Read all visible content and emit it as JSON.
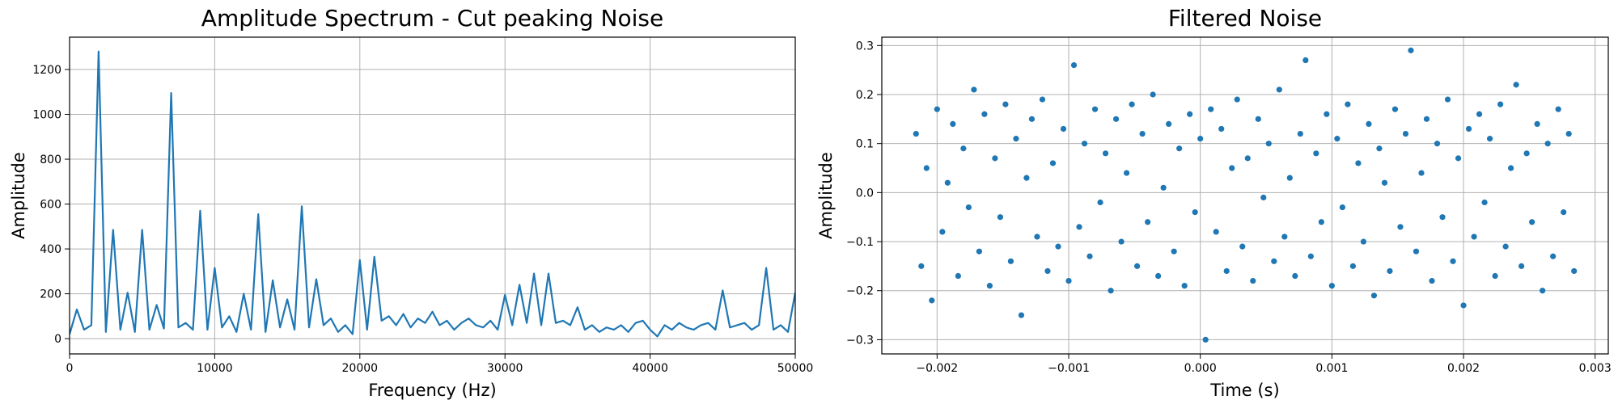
{
  "chart_data": [
    {
      "type": "line",
      "title": "Amplitude Spectrum - Cut peaking Noise",
      "xlabel": "Frequency (Hz)",
      "ylabel": "Amplitude",
      "color": "#1f77b4",
      "grid": true,
      "x": [
        0,
        500,
        1000,
        1500,
        2000,
        2500,
        3000,
        3500,
        4000,
        4500,
        5000,
        5500,
        6000,
        6500,
        7000,
        7500,
        8000,
        8500,
        9000,
        9500,
        10000,
        10500,
        11000,
        11500,
        12000,
        12500,
        13000,
        13500,
        14000,
        14500,
        15000,
        15500,
        16000,
        16500,
        17000,
        17500,
        18000,
        18500,
        19000,
        19500,
        20000,
        20500,
        21000,
        21500,
        22000,
        22500,
        23000,
        23500,
        24000,
        24500,
        25000,
        25500,
        26000,
        26500,
        27000,
        27500,
        28000,
        28500,
        29000,
        29500,
        30000,
        30500,
        31000,
        31500,
        32000,
        32500,
        33000,
        33500,
        34000,
        34500,
        35000,
        35500,
        36000,
        36500,
        37000,
        37500,
        38000,
        38500,
        39000,
        39500,
        40000,
        40500,
        41000,
        41500,
        42000,
        42500,
        43000,
        43500,
        44000,
        44500,
        45000,
        45500,
        46000,
        46500,
        47000,
        47500,
        48000,
        48500,
        49000,
        49500,
        50000
      ],
      "values": [
        20,
        130,
        40,
        60,
        1280,
        30,
        485,
        40,
        205,
        30,
        485,
        40,
        150,
        45,
        1095,
        50,
        70,
        40,
        570,
        40,
        315,
        50,
        100,
        30,
        200,
        40,
        555,
        30,
        260,
        50,
        175,
        40,
        590,
        50,
        265,
        60,
        90,
        30,
        60,
        20,
        350,
        40,
        365,
        80,
        100,
        60,
        110,
        50,
        90,
        70,
        120,
        60,
        80,
        40,
        70,
        90,
        60,
        50,
        80,
        40,
        195,
        60,
        240,
        70,
        290,
        60,
        290,
        70,
        80,
        60,
        140,
        40,
        60,
        30,
        50,
        40,
        60,
        30,
        70,
        80,
        40,
        10,
        60,
        40,
        70,
        50,
        40,
        60,
        70,
        40,
        215,
        50,
        60,
        70,
        40,
        60,
        315,
        40,
        60,
        30,
        205
      ],
      "xlim": [
        0,
        50000
      ],
      "xticks": [
        0,
        10000,
        20000,
        30000,
        40000,
        50000
      ],
      "ylim": [
        -68,
        1344
      ],
      "yticks": [
        0,
        200,
        400,
        600,
        800,
        1000,
        1200
      ]
    },
    {
      "type": "scatter",
      "title": "Filtered Noise",
      "xlabel": "Time (s)",
      "ylabel": "Amplitude",
      "color": "#1f77b4",
      "grid": true,
      "x": [
        -0.00216,
        -0.00212,
        -0.00208,
        -0.00204,
        -0.002,
        -0.00196,
        -0.00192,
        -0.00188,
        -0.00184,
        -0.0018,
        -0.00176,
        -0.00172,
        -0.00168,
        -0.00164,
        -0.0016,
        -0.00156,
        -0.00152,
        -0.00148,
        -0.00144,
        -0.0014,
        -0.00136,
        -0.00132,
        -0.00128,
        -0.00124,
        -0.0012,
        -0.00116,
        -0.00112,
        -0.00108,
        -0.00104,
        -0.001,
        -0.00096,
        -0.00092,
        -0.00088,
        -0.00084,
        -0.0008,
        -0.00076,
        -0.00072,
        -0.00068,
        -0.00064,
        -0.0006,
        -0.00056,
        -0.00052,
        -0.00048,
        -0.00044,
        -0.0004,
        -0.00036,
        -0.00032,
        -0.00028,
        -0.00024,
        -0.0002,
        -0.00016,
        -0.00012,
        -8e-05,
        -4e-05,
        0,
        4e-05,
        8e-05,
        0.00012,
        0.00016,
        0.0002,
        0.00024,
        0.00028,
        0.00032,
        0.00036,
        0.0004,
        0.00044,
        0.00048,
        0.00052,
        0.00056,
        0.0006,
        0.00064,
        0.00068,
        0.00072,
        0.00076,
        0.0008,
        0.00084,
        0.00088,
        0.00092,
        0.00096,
        0.001,
        0.00104,
        0.00108,
        0.00112,
        0.00116,
        0.0012,
        0.00124,
        0.00128,
        0.00132,
        0.00136,
        0.0014,
        0.00144,
        0.00148,
        0.00152,
        0.00156,
        0.0016,
        0.00164,
        0.00168,
        0.00172,
        0.00176,
        0.0018,
        0.00184,
        0.00188,
        0.00192,
        0.00196,
        0.002,
        0.00204,
        0.00208,
        0.00212,
        0.00216,
        0.0022,
        0.00224,
        0.00228,
        0.00232,
        0.00236,
        0.0024,
        0.00244,
        0.00248,
        0.00252,
        0.00256,
        0.0026,
        0.00264,
        0.00268,
        0.00272,
        0.00276,
        0.0028,
        0.00284
      ],
      "values": [
        0.12,
        -0.15,
        0.05,
        -0.22,
        0.17,
        -0.08,
        0.02,
        0.14,
        -0.17,
        0.09,
        -0.03,
        0.21,
        -0.12,
        0.16,
        -0.19,
        0.07,
        -0.05,
        0.18,
        -0.14,
        0.11,
        -0.25,
        0.03,
        0.15,
        -0.09,
        0.19,
        -0.16,
        0.06,
        -0.11,
        0.13,
        -0.18,
        0.26,
        -0.07,
        0.1,
        -0.13,
        0.17,
        -0.02,
        0.08,
        -0.2,
        0.15,
        -0.1,
        0.04,
        0.18,
        -0.15,
        0.12,
        -0.06,
        0.2,
        -0.17,
        0.01,
        0.14,
        -0.12,
        0.09,
        -0.19,
        0.16,
        -0.04,
        0.11,
        -0.3,
        0.17,
        -0.08,
        0.13,
        -0.16,
        0.05,
        0.19,
        -0.11,
        0.07,
        -0.18,
        0.15,
        -0.01,
        0.1,
        -0.14,
        0.21,
        -0.09,
        0.03,
        -0.17,
        0.12,
        0.27,
        -0.13,
        0.08,
        -0.06,
        0.16,
        -0.19,
        0.11,
        -0.03,
        0.18,
        -0.15,
        0.06,
        -0.1,
        0.14,
        -0.21,
        0.09,
        0.02,
        -0.16,
        0.17,
        -0.07,
        0.12,
        0.29,
        -0.12,
        0.04,
        0.15,
        -0.18,
        0.1,
        -0.05,
        0.19,
        -0.14,
        0.07,
        -0.23,
        0.13,
        -0.09,
        0.16,
        -0.02,
        0.11,
        -0.17,
        0.18,
        -0.11,
        0.05,
        0.22,
        -0.15,
        0.08,
        -0.06,
        0.14,
        -0.2,
        0.1,
        -0.13,
        0.17,
        -0.04,
        0.12,
        -0.16
      ],
      "xlim": [
        -0.00242,
        0.0031
      ],
      "xticks": [
        {
          "value": -0.002,
          "label": "−0.002"
        },
        {
          "value": -0.001,
          "label": "−0.001"
        },
        {
          "value": 0,
          "label": "0.000"
        },
        {
          "value": 0.001,
          "label": "0.001"
        },
        {
          "value": 0.002,
          "label": "0.002"
        },
        {
          "value": 0.003,
          "label": "0.003"
        }
      ],
      "ylim": [
        -0.329,
        0.317
      ],
      "yticks": [
        {
          "value": -0.3,
          "label": "−0.3"
        },
        {
          "value": -0.2,
          "label": "−0.2"
        },
        {
          "value": -0.1,
          "label": "−0.1"
        },
        {
          "value": 0,
          "label": "0.0"
        },
        {
          "value": 0.1,
          "label": "0.1"
        },
        {
          "value": 0.2,
          "label": "0.2"
        },
        {
          "value": 0.3,
          "label": "0.3"
        }
      ]
    }
  ]
}
